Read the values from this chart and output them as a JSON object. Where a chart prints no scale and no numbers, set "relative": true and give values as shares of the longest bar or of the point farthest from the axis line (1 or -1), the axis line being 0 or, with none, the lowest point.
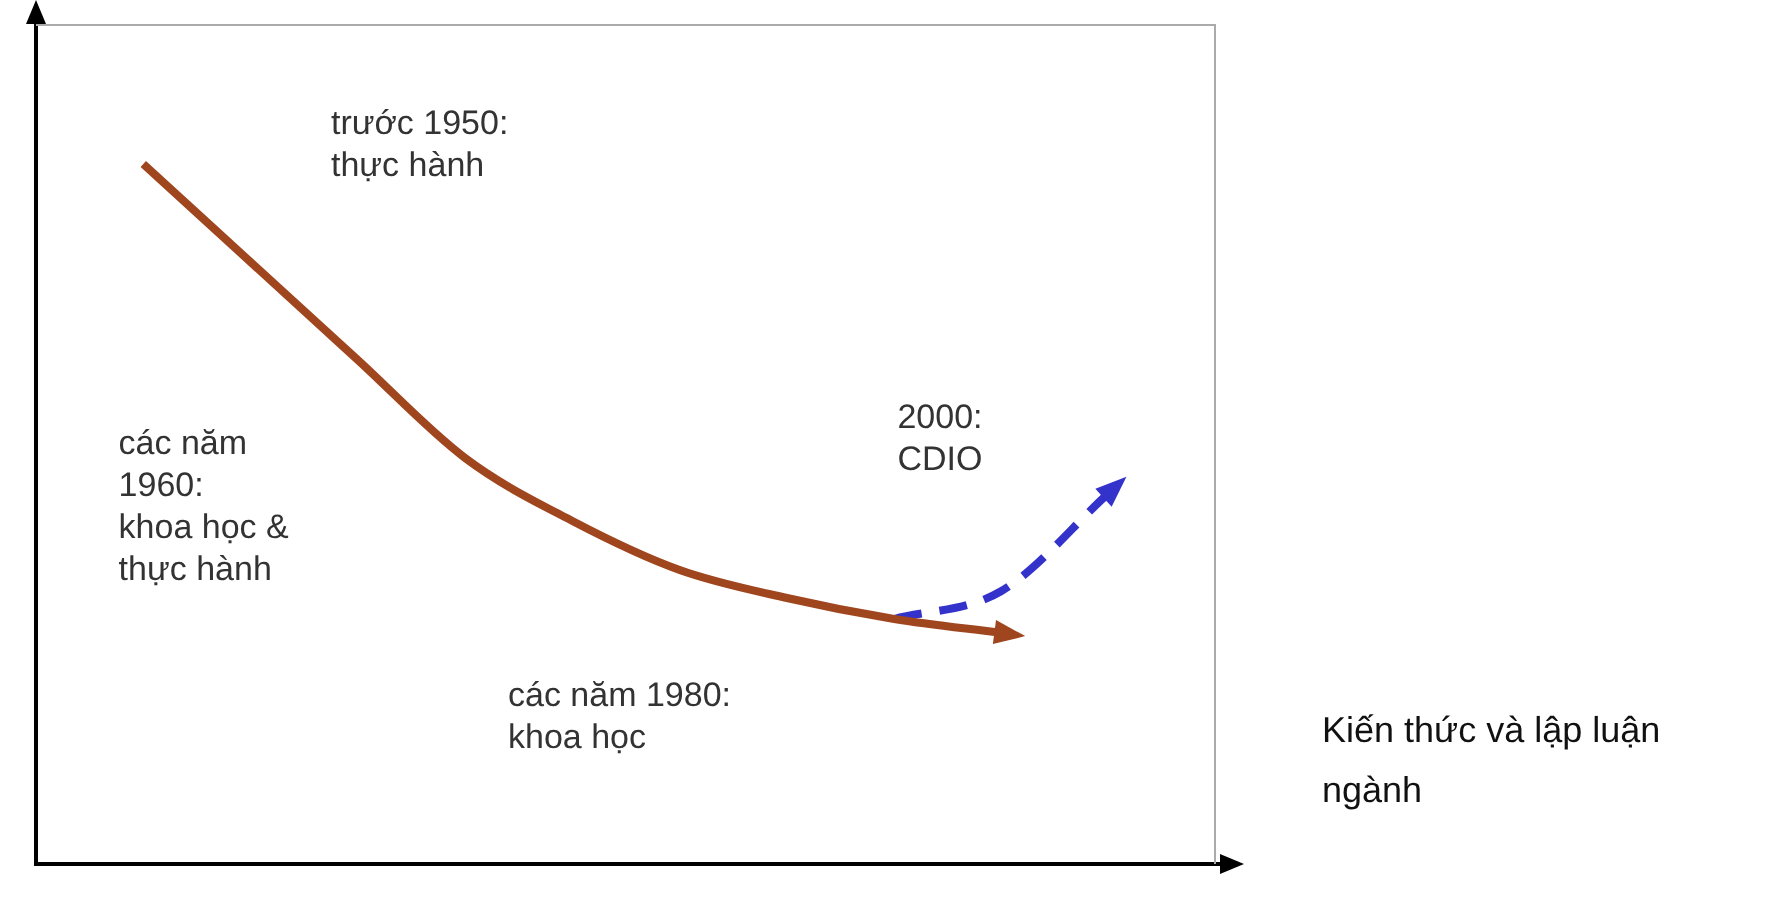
{
  "chart_data": {
    "type": "line",
    "relative": true,
    "xlabel": "Kiến thức và lập luận ngành",
    "categories": [
      null,
      null,
      null,
      null,
      null,
      null,
      null,
      null,
      null,
      null,
      null,
      null
    ],
    "series": [
      {
        "color": "#a0461e",
        "line_style": "solid",
        "values": [
          null,
          1,
          0.86,
          0.72,
          0.58,
          0.49,
          0.42,
          0.38,
          0.35,
          0.33,
          null,
          null
        ]
      },
      {
        "color": "#3333cc",
        "line_style": "dashed",
        "values": [
          null,
          null,
          null,
          null,
          null,
          null,
          null,
          null,
          0.35,
          0.39,
          0.53,
          null
        ]
      }
    ],
    "annotations": [
      "trước 1950:\nthực hành",
      "các năm\n1960:\nkhoa học &\nthực hành",
      "các năm 1980:\nkhoa học",
      "2000:\nCDIO"
    ],
    "marker": "none",
    "legend": false
  }
}
